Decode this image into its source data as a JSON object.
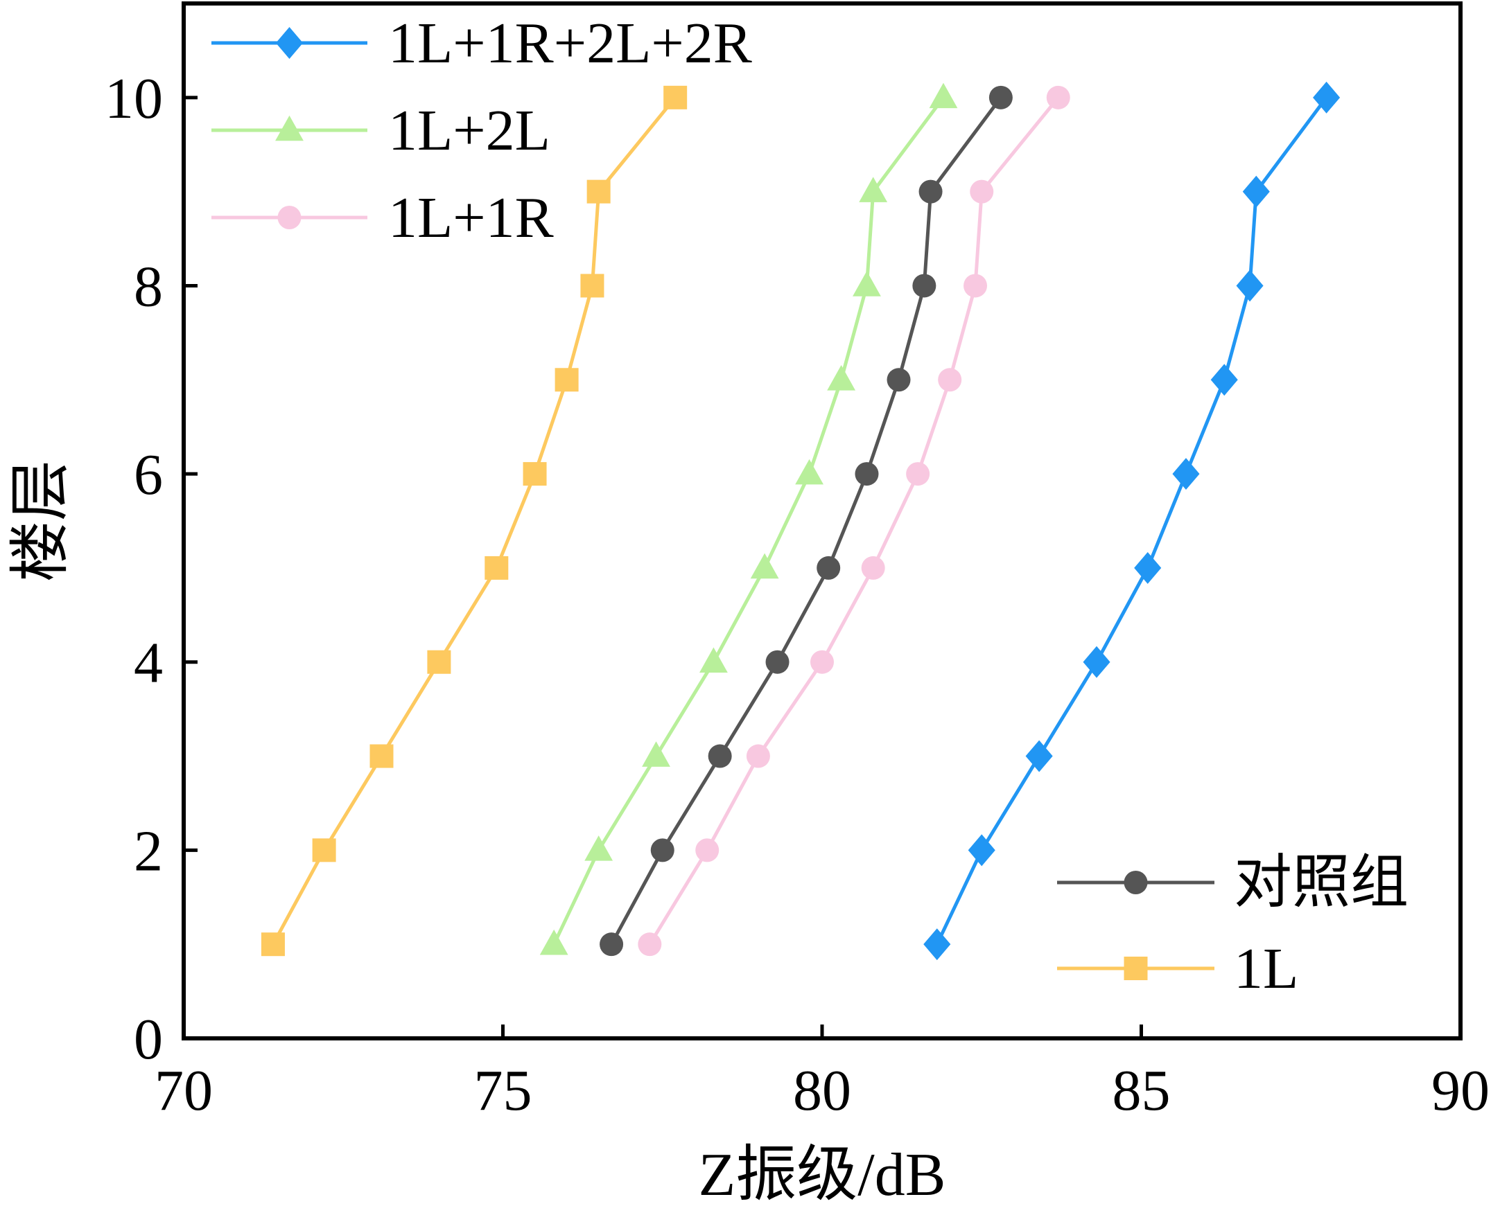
{
  "chart_data": {
    "type": "line",
    "title": "",
    "xlabel": "Z振级/dB",
    "ylabel": "楼层",
    "xlim": [
      70,
      90
    ],
    "ylim": [
      0,
      11
    ],
    "xticks": [
      70,
      75,
      80,
      85,
      90
    ],
    "yticks": [
      0,
      2,
      4,
      6,
      8,
      10
    ],
    "grid": false,
    "legends": [
      {
        "placement": "top-left",
        "entries": [
          "1L+1R+2L+2R",
          "1L+2L",
          "1L+1R"
        ]
      },
      {
        "placement": "bottom-right",
        "entries": [
          "对照组",
          "1L"
        ]
      }
    ],
    "series": [
      {
        "name": "1L+1R+2L+2R",
        "color": "#2196f3",
        "marker": "diamond",
        "points": [
          [
            81.8,
            1
          ],
          [
            82.5,
            2
          ],
          [
            83.4,
            3
          ],
          [
            84.3,
            4
          ],
          [
            85.1,
            5
          ],
          [
            85.7,
            6
          ],
          [
            86.3,
            7
          ],
          [
            86.7,
            8
          ],
          [
            86.8,
            9
          ],
          [
            87.9,
            10
          ]
        ]
      },
      {
        "name": "1L+2L",
        "color": "#b8ef9a",
        "marker": "triangle",
        "points": [
          [
            75.8,
            1
          ],
          [
            76.5,
            2
          ],
          [
            77.4,
            3
          ],
          [
            78.3,
            4
          ],
          [
            79.1,
            5
          ],
          [
            79.8,
            6
          ],
          [
            80.3,
            7
          ],
          [
            80.7,
            8
          ],
          [
            80.8,
            9
          ],
          [
            81.9,
            10
          ]
        ]
      },
      {
        "name": "1L+1R",
        "color": "#f8c8e0",
        "marker": "circle",
        "points": [
          [
            77.3,
            1
          ],
          [
            78.2,
            2
          ],
          [
            79.0,
            3
          ],
          [
            80.0,
            4
          ],
          [
            80.8,
            5
          ],
          [
            81.5,
            6
          ],
          [
            82.0,
            7
          ],
          [
            82.4,
            8
          ],
          [
            82.5,
            9
          ],
          [
            83.7,
            10
          ]
        ]
      },
      {
        "name": "对照组",
        "color": "#555555",
        "marker": "circle",
        "points": [
          [
            76.7,
            1
          ],
          [
            77.5,
            2
          ],
          [
            78.4,
            3
          ],
          [
            79.3,
            4
          ],
          [
            80.1,
            5
          ],
          [
            80.7,
            6
          ],
          [
            81.2,
            7
          ],
          [
            81.6,
            8
          ],
          [
            81.7,
            9
          ],
          [
            82.8,
            10
          ]
        ]
      },
      {
        "name": "1L",
        "color": "#fdc95f",
        "marker": "square",
        "points": [
          [
            71.4,
            1
          ],
          [
            72.2,
            2
          ],
          [
            73.1,
            3
          ],
          [
            74.0,
            4
          ],
          [
            74.9,
            5
          ],
          [
            75.5,
            6
          ],
          [
            76.0,
            7
          ],
          [
            76.4,
            8
          ],
          [
            76.5,
            9
          ],
          [
            77.7,
            10
          ]
        ]
      }
    ]
  }
}
